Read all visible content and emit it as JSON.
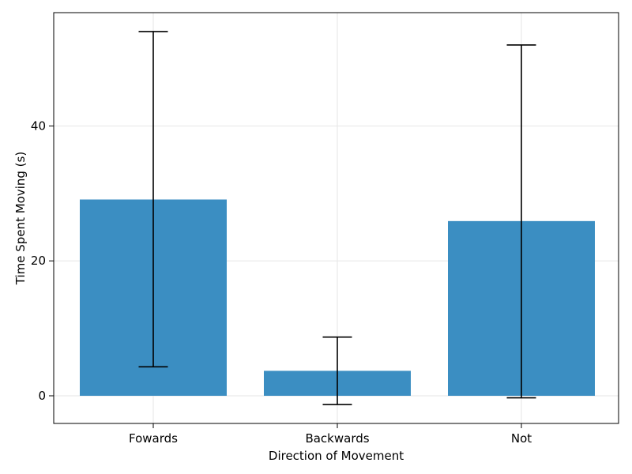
{
  "chart_data": {
    "type": "bar",
    "title": "",
    "xlabel": "Direction of Movement",
    "ylabel": "Time Spent Moving (s)",
    "categories": [
      "Fowards",
      "Backwards",
      "Not"
    ],
    "values": [
      29.1,
      3.7,
      25.9
    ],
    "error_low": [
      4.3,
      -1.3,
      -0.3
    ],
    "error_high": [
      54.0,
      8.7,
      52.0
    ],
    "ylim": [
      -4.1,
      56.8
    ],
    "yticks": [
      0,
      20,
      40
    ],
    "grid": true,
    "bar_color": "#3b8ec2",
    "errorbar_color": "#000000"
  }
}
